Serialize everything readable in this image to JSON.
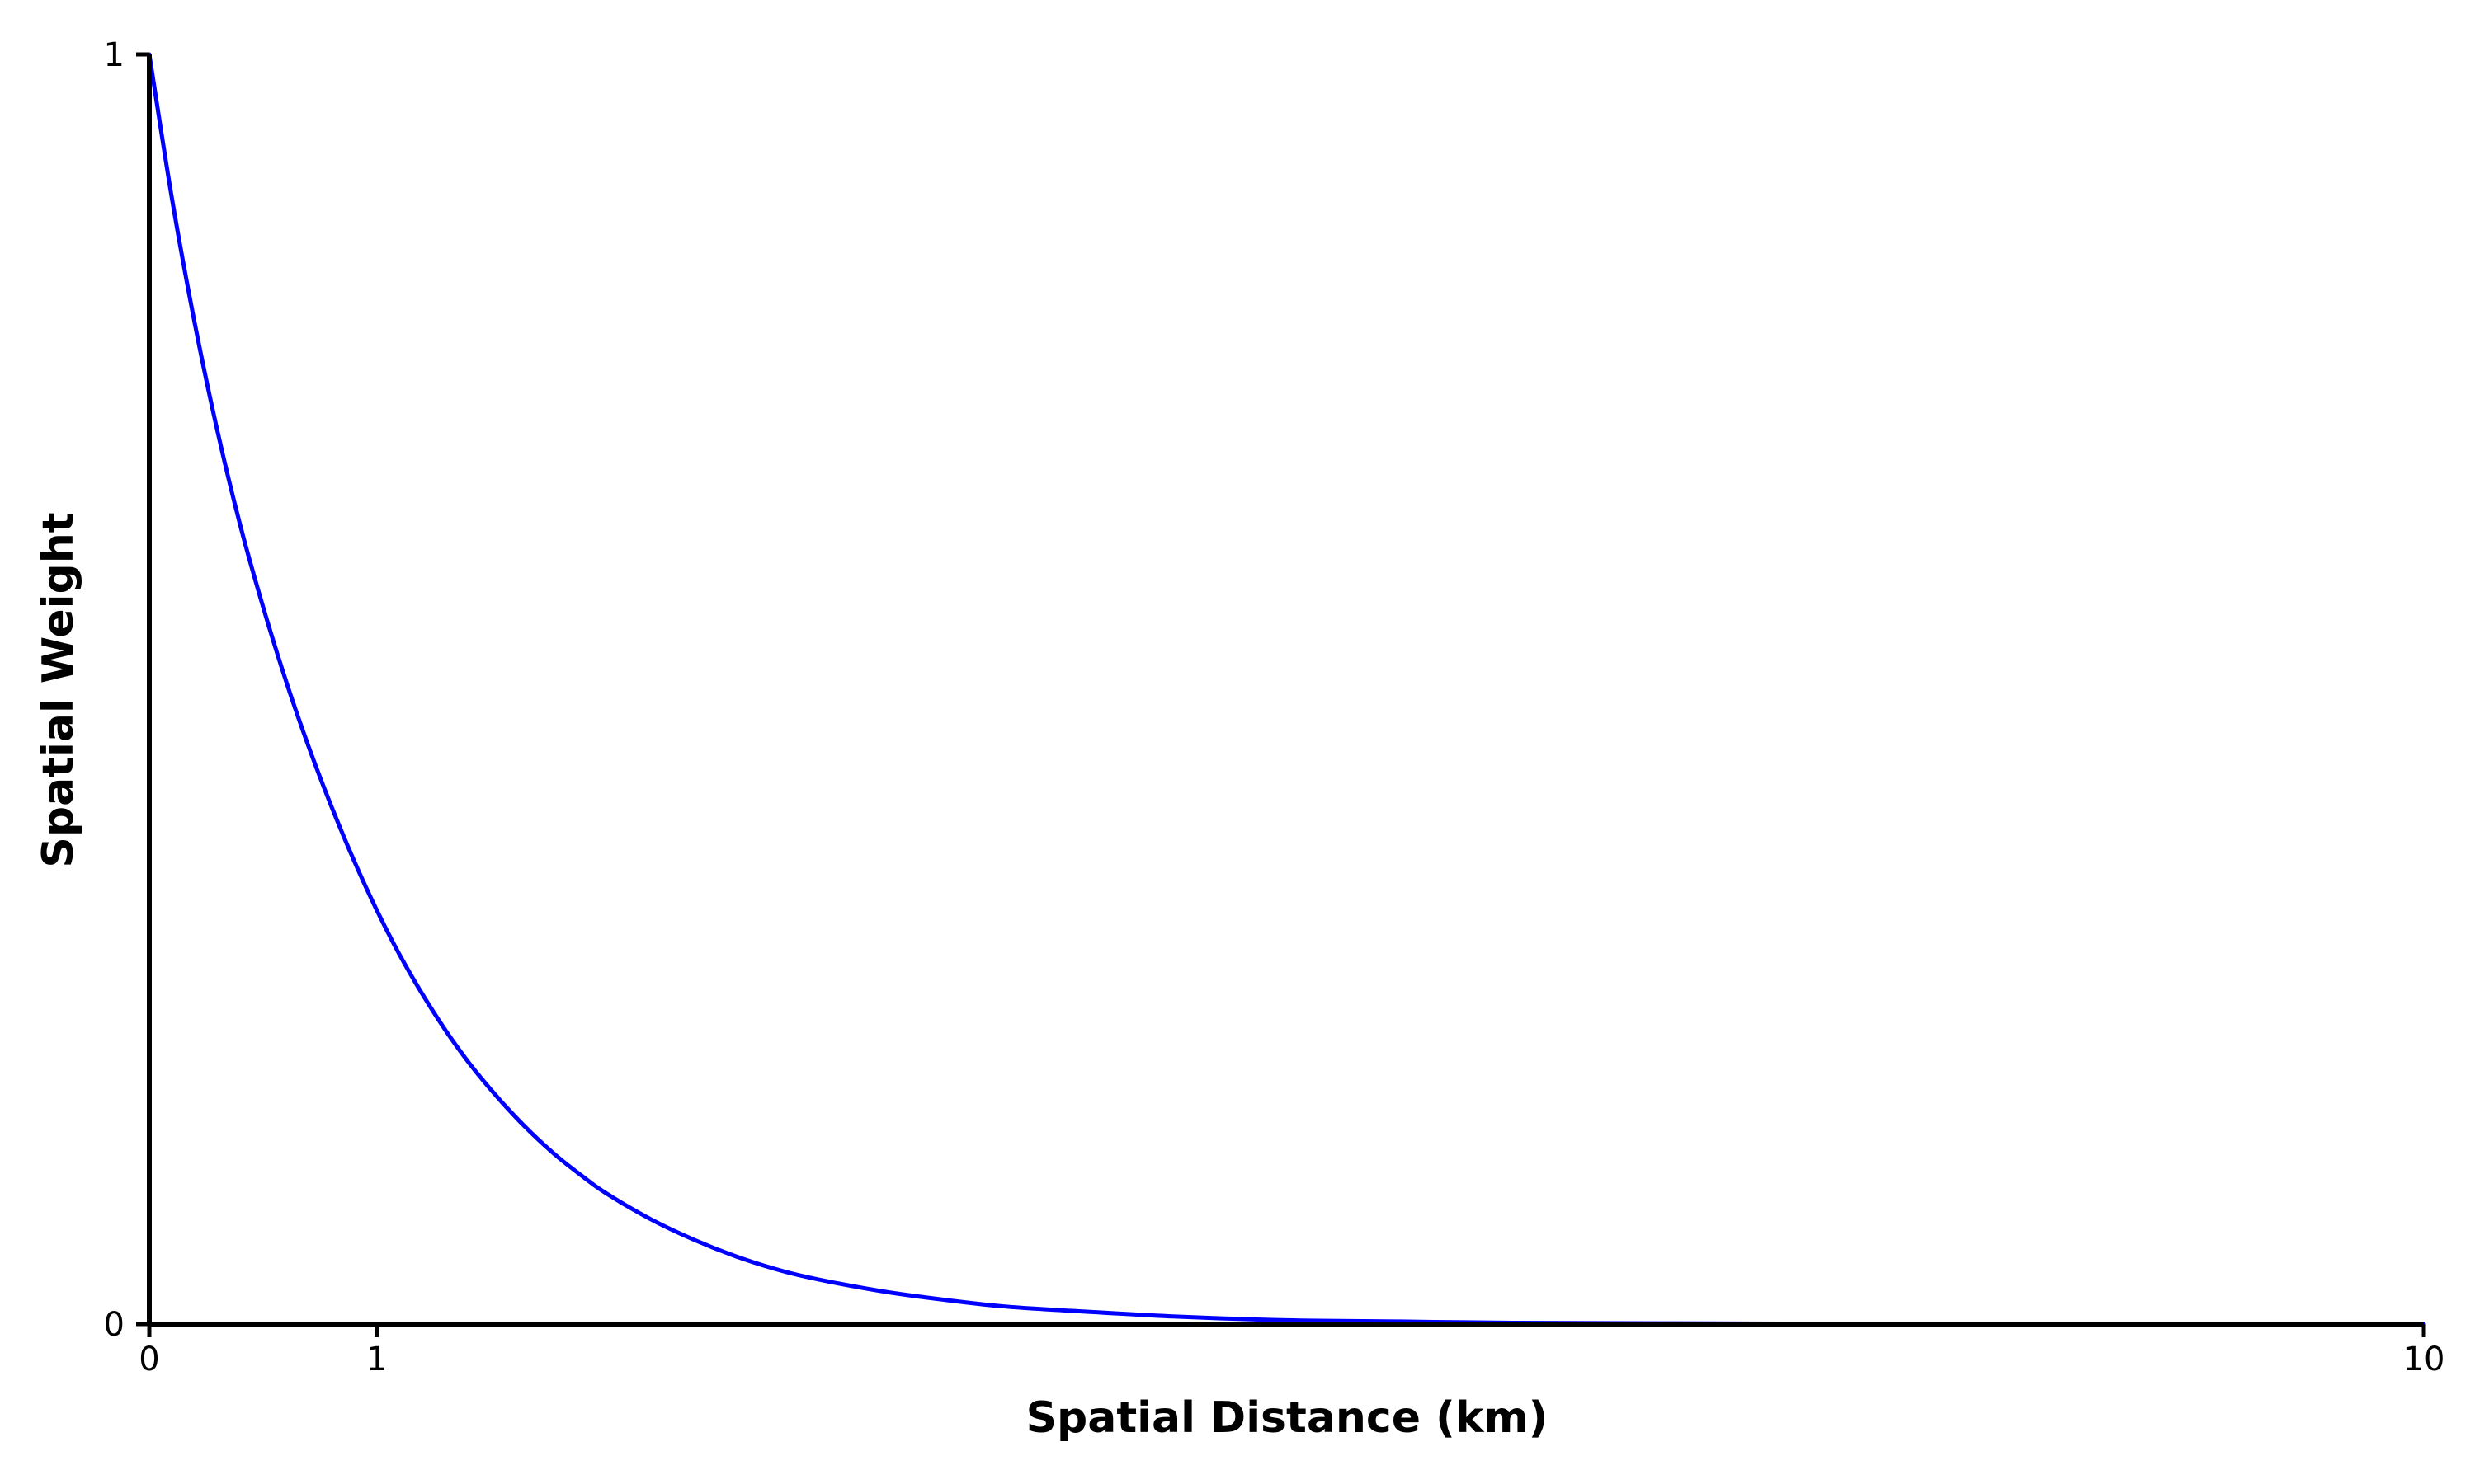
{
  "chart_data": {
    "type": "line",
    "title": "",
    "xlabel": "Spatial Distance (km)",
    "ylabel": "Spatial Weight",
    "xlim": [
      0,
      10
    ],
    "ylim": [
      0,
      1
    ],
    "x_ticks": [
      {
        "value": 0,
        "label": "0"
      },
      {
        "value": 1,
        "label": "1"
      },
      {
        "value": 10,
        "label": "10"
      }
    ],
    "y_ticks": [
      {
        "value": 0,
        "label": "0"
      },
      {
        "value": 1,
        "label": "1"
      }
    ],
    "grid": false,
    "legend": "none",
    "series": [
      {
        "color": "#0000ff",
        "x": [
          0,
          0.1,
          0.2,
          0.3,
          0.4,
          0.5,
          0.6,
          0.7,
          0.8,
          0.9,
          1.0,
          1.1,
          1.2,
          1.3,
          1.4,
          1.5,
          1.6,
          1.7,
          1.8,
          1.9,
          2.0,
          2.2,
          2.4,
          2.6,
          2.8,
          3.0,
          3.25,
          3.5,
          3.75,
          4.0,
          4.5,
          5.0,
          5.5,
          6.0,
          7.0,
          8.0,
          9.0,
          10.0
        ],
        "y": [
          1.0,
          0.886,
          0.788,
          0.703,
          0.629,
          0.565,
          0.507,
          0.455,
          0.408,
          0.365,
          0.326,
          0.291,
          0.26,
          0.232,
          0.207,
          0.185,
          0.165,
          0.147,
          0.131,
          0.117,
          0.104,
          0.083,
          0.066,
          0.052,
          0.041,
          0.033,
          0.025,
          0.019,
          0.014,
          0.011,
          0.006,
          0.003,
          0.002,
          0.001,
          0.0004,
          0.0001,
          4e-05,
          1e-05
        ]
      }
    ],
    "colors": {
      "axis": "#000000",
      "line": "#0000ff",
      "background": "#ffffff"
    }
  }
}
